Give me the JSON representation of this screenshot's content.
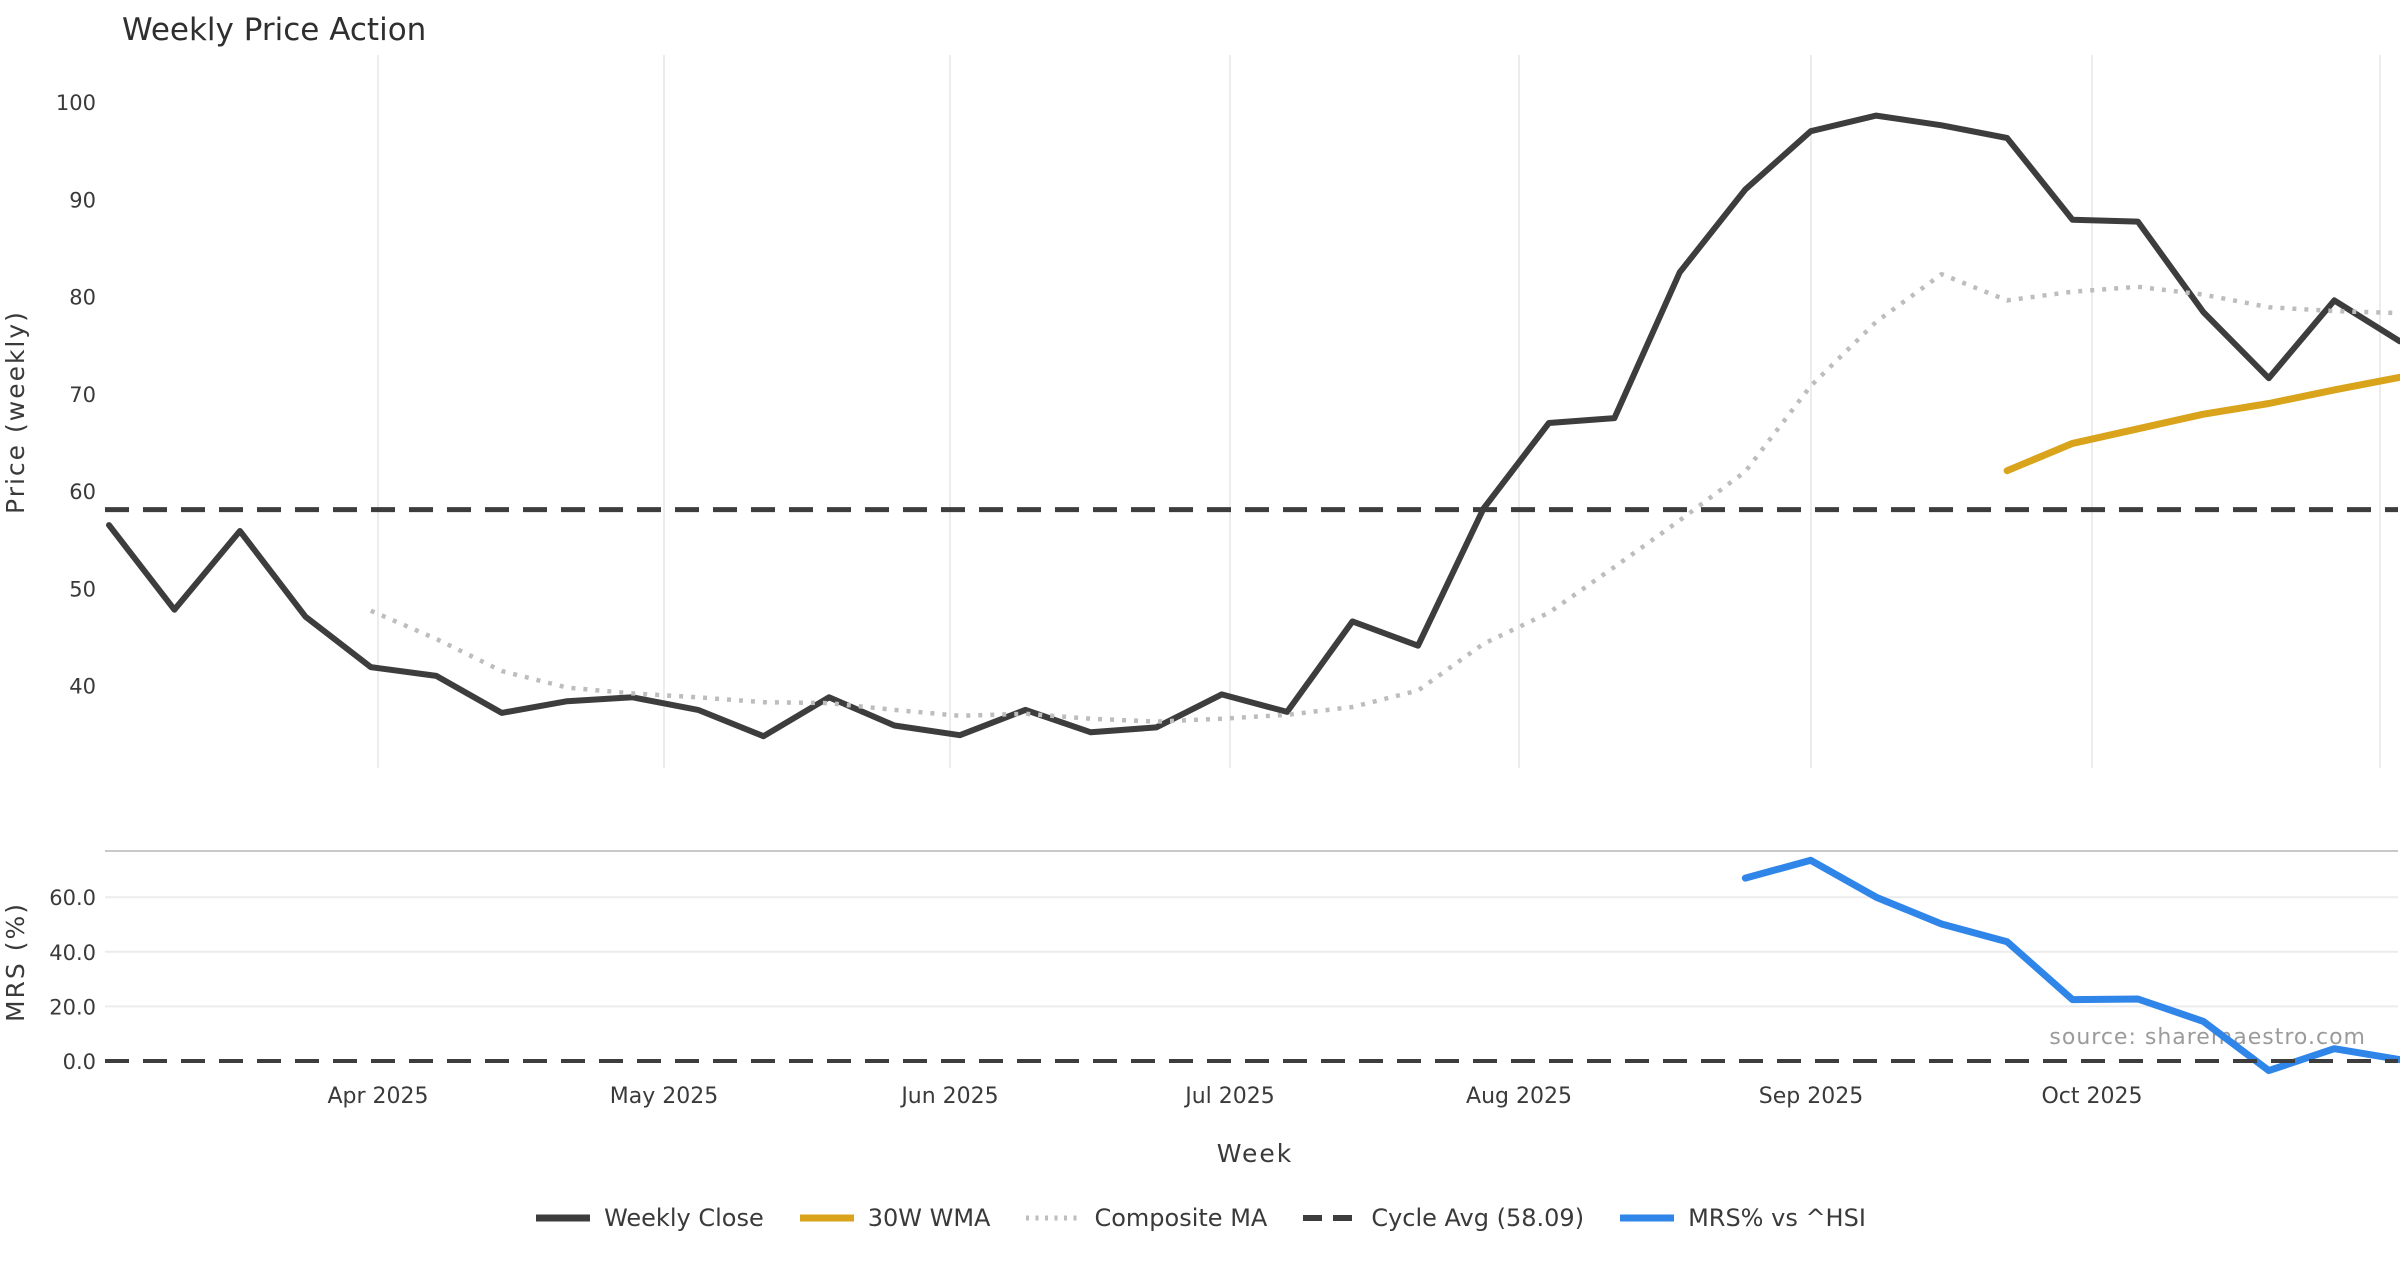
{
  "title": "Weekly Price Action",
  "source_note": "source: sharemaestro.com",
  "colors": {
    "weekly_close": "#3d3d3d",
    "wma_30w": "#d9a41b",
    "composite_ma": "#bdbdbd",
    "cycle_avg": "#3d3d3d",
    "mrs": "#2f86e8",
    "grid": "#ececec",
    "spine": "#c9c9c9",
    "text": "#3a3a3a",
    "muted_text": "#9b9b9b"
  },
  "legend": [
    {
      "label": "Weekly Close",
      "style": "solid",
      "color_key": "weekly_close"
    },
    {
      "label": "30W WMA",
      "style": "solid",
      "color_key": "wma_30w"
    },
    {
      "label": "Composite MA",
      "style": "dotted",
      "color_key": "composite_ma"
    },
    {
      "label": "Cycle Avg (58.09)",
      "style": "dashed",
      "color_key": "cycle_avg"
    },
    {
      "label": "MRS% vs ^HSI",
      "style": "solid",
      "color_key": "mrs"
    }
  ],
  "x_axis": {
    "label": "Week",
    "month_tick_labels": [
      "Apr 2025",
      "May 2025",
      "Jun 2025",
      "Jul 2025",
      "Aug 2025",
      "Sep 2025",
      "Oct 2025"
    ]
  },
  "chart_data": [
    {
      "type": "line",
      "panel": "price",
      "title": "Weekly Price Action",
      "xlabel": "Week",
      "ylabel": "Price (weekly)",
      "x": [
        "2025-03-03",
        "2025-03-10",
        "2025-03-17",
        "2025-03-24",
        "2025-03-31",
        "2025-04-07",
        "2025-04-14",
        "2025-04-21",
        "2025-04-28",
        "2025-05-05",
        "2025-05-12",
        "2025-05-19",
        "2025-05-26",
        "2025-06-02",
        "2025-06-09",
        "2025-06-16",
        "2025-06-23",
        "2025-06-30",
        "2025-07-07",
        "2025-07-14",
        "2025-07-21",
        "2025-07-28",
        "2025-08-04",
        "2025-08-11",
        "2025-08-18",
        "2025-08-25",
        "2025-09-01",
        "2025-09-08",
        "2025-09-15",
        "2025-09-22",
        "2025-09-29",
        "2025-10-06",
        "2025-10-13",
        "2025-10-20",
        "2025-10-27",
        "2025-11-03"
      ],
      "xtick_labels": [
        "Apr 2025",
        "May 2025",
        "Jun 2025",
        "Jul 2025",
        "Aug 2025",
        "Sep 2025",
        "Oct 2025"
      ],
      "ylim": [
        31,
        105
      ],
      "yticks": [
        40,
        50,
        60,
        70,
        80,
        90,
        100
      ],
      "grid": "vertical-monthly",
      "legend_position": "bottom-center",
      "series": [
        {
          "name": "Weekly Close",
          "style": "solid",
          "color_key": "weekly_close",
          "start_index": 0,
          "values": [
            56.5,
            47.8,
            55.9,
            47.1,
            41.9,
            41.0,
            37.2,
            38.4,
            38.8,
            37.5,
            34.8,
            38.8,
            35.9,
            34.9,
            37.5,
            35.2,
            35.7,
            39.1,
            37.3,
            46.6,
            44.1,
            58.2,
            67.0,
            67.5,
            82.5,
            91.0,
            97.0,
            98.6,
            97.6,
            96.3,
            87.9,
            87.7,
            78.4,
            71.6,
            79.6,
            75.4
          ]
        },
        {
          "name": "30W WMA",
          "style": "solid",
          "color_key": "wma_30w",
          "start_index": 29,
          "values": [
            62.1,
            64.9,
            66.4,
            67.9,
            69.0,
            70.4,
            71.7
          ]
        },
        {
          "name": "Composite MA",
          "style": "dotted",
          "color_key": "composite_ma",
          "start_index": 4,
          "values": [
            47.7,
            44.8,
            41.5,
            39.8,
            39.2,
            38.8,
            38.3,
            38.2,
            37.5,
            36.9,
            37.1,
            36.6,
            36.3,
            36.6,
            37.0,
            37.8,
            39.5,
            44.3,
            47.5,
            52.2,
            57.0,
            62.0,
            70.8,
            77.4,
            82.3,
            79.6,
            80.5,
            81.0,
            80.2,
            78.9,
            78.5,
            78.3
          ]
        },
        {
          "name": "Cycle Avg (58.09)",
          "style": "dashed",
          "color_key": "cycle_avg",
          "constant": 58.09
        }
      ]
    },
    {
      "type": "line",
      "panel": "mrs",
      "ylabel": "MRS (%)",
      "ylim": [
        -6.5,
        77
      ],
      "yticks": [
        0,
        20,
        40,
        60
      ],
      "ytick_labels": [
        "0.0",
        "20.0",
        "40.0",
        "60.0"
      ],
      "grid": "horizontal",
      "series": [
        {
          "name": "MRS% vs ^HSI",
          "style": "solid",
          "color_key": "mrs",
          "start_index": 25,
          "values": [
            67.0,
            73.5,
            60.0,
            50.2,
            43.7,
            22.5,
            22.7,
            14.5,
            -3.5,
            4.5,
            0.5
          ]
        },
        {
          "name": "Zero Line",
          "style": "dashed",
          "color_key": "cycle_avg",
          "constant": 0
        }
      ]
    }
  ]
}
